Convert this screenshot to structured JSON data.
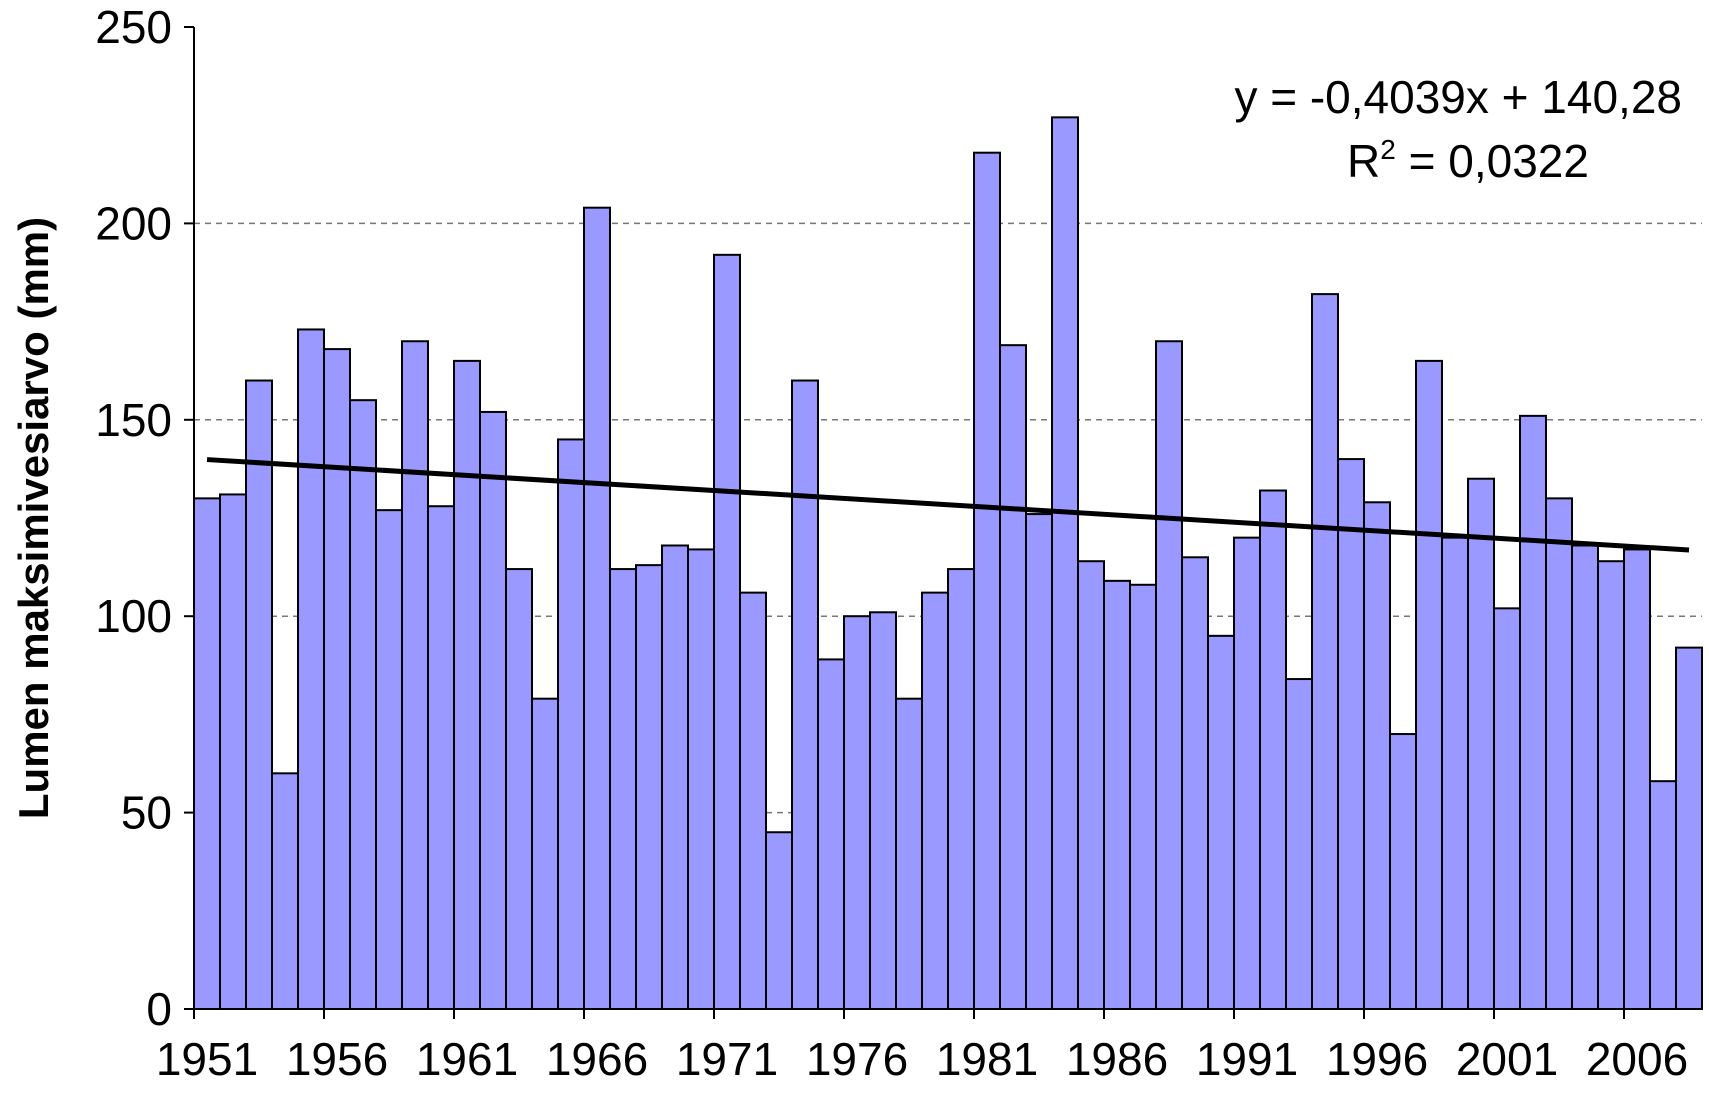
{
  "chart_data": {
    "type": "bar",
    "y_label": "Lumen maksimivesiarvo (mm)",
    "categories": [
      "1951",
      null,
      null,
      null,
      null,
      "1956",
      null,
      null,
      null,
      null,
      "1961",
      null,
      null,
      null,
      null,
      "1966",
      null,
      null,
      null,
      null,
      "1971",
      null,
      null,
      null,
      null,
      "1976",
      null,
      null,
      null,
      null,
      "1981",
      null,
      null,
      null,
      null,
      "1986",
      null,
      null,
      null,
      null,
      "1991",
      null,
      null,
      null,
      null,
      "1996",
      null,
      null,
      null,
      null,
      "2001",
      null,
      null,
      null,
      null,
      "2006",
      null,
      null
    ],
    "values": [
      130,
      131,
      160,
      60,
      173,
      168,
      155,
      127,
      170,
      128,
      165,
      152,
      112,
      79,
      145,
      204,
      112,
      113,
      118,
      117,
      192,
      106,
      45,
      160,
      89,
      100,
      101,
      79,
      106,
      112,
      218,
      169,
      126,
      227,
      114,
      109,
      108,
      170,
      115,
      95,
      120,
      132,
      84,
      182,
      140,
      129,
      70,
      165,
      120,
      135,
      102,
      151,
      130,
      118,
      114,
      117,
      58,
      92
    ],
    "color": "#9999ff",
    "ylim": [
      0,
      250
    ],
    "yticks": [
      0,
      50,
      100,
      150,
      200,
      250
    ],
    "grid": true,
    "trendline": {
      "slope": -0.4039,
      "intercept": 140.28,
      "color": "#000000",
      "equation": "y = -0,4039x + 140,28",
      "r_squared_label": {
        "base": "R",
        "sup": "2",
        "rest": " = 0,0322"
      }
    }
  }
}
